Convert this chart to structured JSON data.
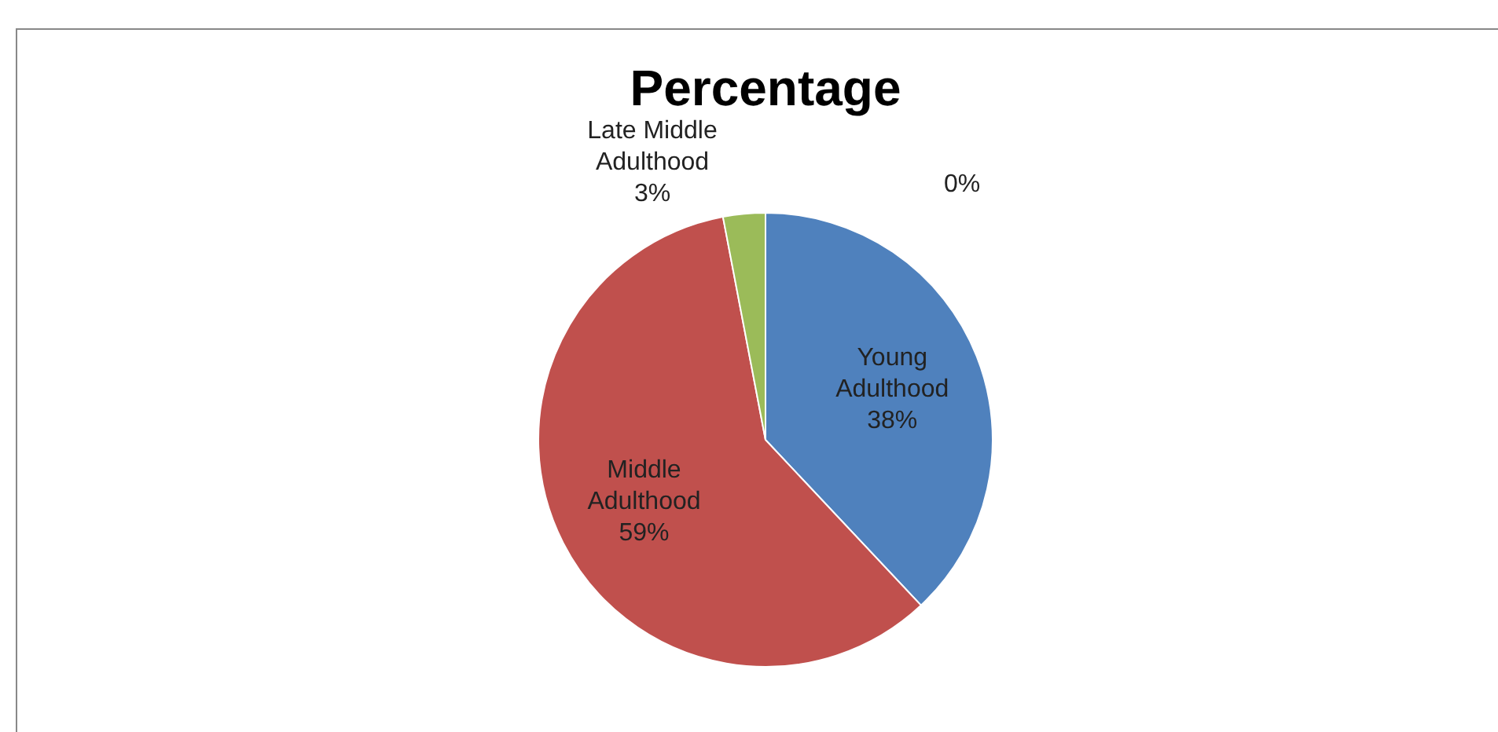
{
  "chart_data": {
    "type": "pie",
    "title": "Percentage",
    "categories": [
      "Young Adulthood",
      "Middle Adulthood",
      "Late Middle Adulthood",
      null
    ],
    "values": [
      38,
      59,
      3,
      0
    ],
    "colors": [
      "#4f81bd",
      "#c0504d",
      "#9bbb59",
      "#8064a2"
    ],
    "value_labels": [
      "38%",
      "59%",
      "3%",
      "0%"
    ],
    "legend": false
  }
}
